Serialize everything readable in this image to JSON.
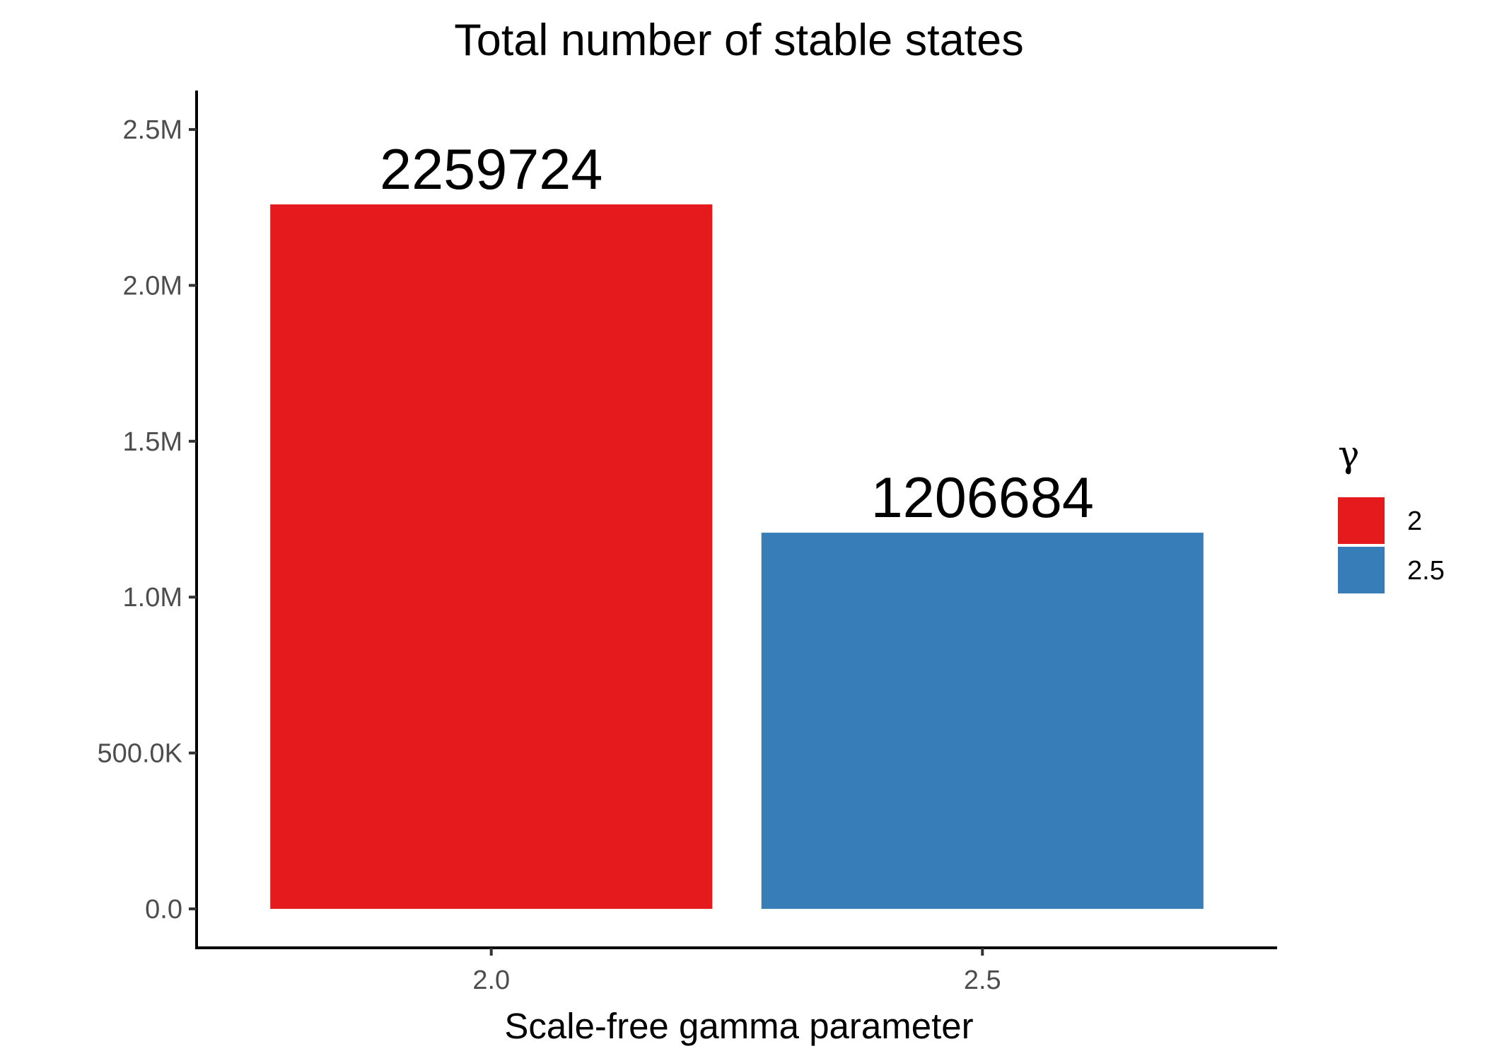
{
  "chart_data": {
    "type": "bar",
    "title": "Total number of stable states",
    "xlabel": "Scale-free gamma parameter",
    "ylabel": "",
    "categories": [
      "2.0",
      "2.5"
    ],
    "values": [
      2259724,
      1206684
    ],
    "data_labels": [
      "2259724",
      "1206684"
    ],
    "colors": [
      "#E41A1C",
      "#377EB8"
    ],
    "ylim": [
      -125000,
      2625000
    ],
    "y_ticks": [
      0,
      500000,
      1000000,
      1500000,
      2000000,
      2500000
    ],
    "y_tick_labels": [
      "0.0",
      "500.0K",
      "1.0M",
      "1.5M",
      "2.0M",
      "2.5M"
    ],
    "grid": false,
    "legend": {
      "title": "γ",
      "position": "right",
      "entries": [
        {
          "label": "2",
          "color": "#E41A1C"
        },
        {
          "label": "2.5",
          "color": "#377EB8"
        }
      ]
    }
  }
}
